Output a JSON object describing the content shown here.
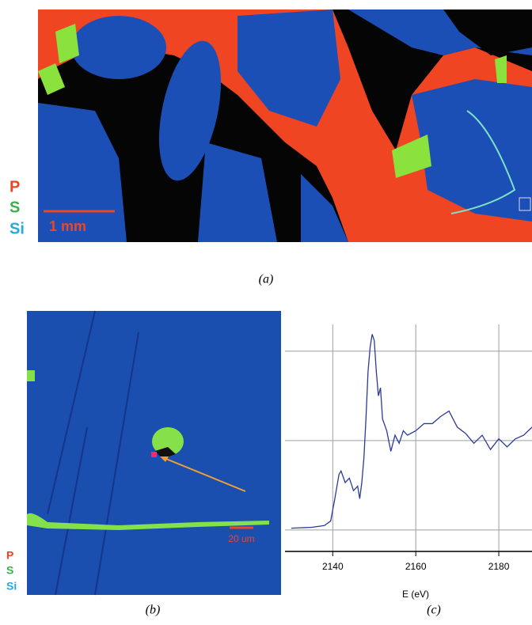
{
  "panel_a": {
    "legend": [
      "P",
      "S",
      "Si"
    ],
    "scale_bar": "1 mm",
    "caption": "(a)"
  },
  "panel_b": {
    "legend": [
      "P",
      "S",
      "Si"
    ],
    "scale_bar": "20 um",
    "caption": "(b)"
  },
  "chart_data": {
    "type": "line",
    "x_label": "E (eV)",
    "caption": "(c)",
    "x": [
      2130,
      2135,
      2138,
      2139.5,
      2140.5,
      2141.5,
      2142,
      2143,
      2144,
      2145,
      2146,
      2146.5,
      2147,
      2147.5,
      2148,
      2148.5,
      2149,
      2149.5,
      2150,
      2150.5,
      2151,
      2151.5,
      2152,
      2153,
      2154,
      2155,
      2156,
      2157,
      2158,
      2160,
      2162,
      2164,
      2166,
      2168,
      2170,
      2172,
      2174,
      2176,
      2178,
      2180,
      2182,
      2184,
      2186,
      2188
    ],
    "values": [
      0.02,
      0.03,
      0.05,
      0.1,
      0.35,
      0.62,
      0.66,
      0.53,
      0.58,
      0.44,
      0.49,
      0.35,
      0.53,
      0.8,
      1.24,
      1.77,
      2.04,
      2.19,
      2.12,
      1.77,
      1.5,
      1.59,
      1.24,
      1.11,
      0.88,
      1.06,
      0.97,
      1.11,
      1.06,
      1.11,
      1.19,
      1.19,
      1.27,
      1.33,
      1.15,
      1.08,
      0.97,
      1.06,
      0.9,
      1.02,
      0.93,
      1.02,
      1.06,
      1.15
    ],
    "color": "#2b3a9a",
    "xlim": [
      2128.5,
      2188
    ],
    "xticks": [
      2140,
      2160,
      2180
    ],
    "ylim": [
      -0.24,
      2.3
    ],
    "yticks": [
      0,
      1,
      2
    ],
    "grid": true
  }
}
